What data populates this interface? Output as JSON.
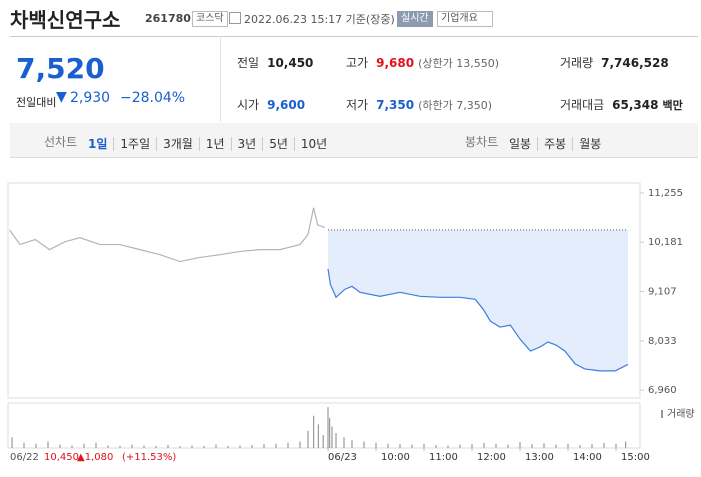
{
  "header": {
    "name": "차백신연구소",
    "code": "261780",
    "market": "코스닥",
    "timestamp": "2022.06.23 15:17 기준(장중)",
    "realtime": "실시간",
    "overview": "기업개요"
  },
  "price": {
    "current": "7,520",
    "change_label": "전일대비",
    "change": "2,930",
    "rate": "−28.04%"
  },
  "stats": [
    {
      "label": "전일",
      "value": "10,450"
    },
    {
      "label": "고가",
      "value": "9,680",
      "note": "(상한가 13,550)"
    },
    {
      "label": "거래량",
      "value": "7,746,528"
    },
    {
      "label": "시가",
      "value": "9,600"
    },
    {
      "label": "저가",
      "value": "7,350",
      "note": "(하한가 7,350)"
    },
    {
      "label": "거래대금",
      "value": "65,348",
      "note": "백만"
    }
  ],
  "tabs": {
    "line_label": "선차트",
    "line_items": [
      "1일",
      "1주일",
      "3개월",
      "1년",
      "3년",
      "5년",
      "10년"
    ],
    "candle_label": "봉차트",
    "candle_items": [
      "일봉",
      "주봉",
      "월봉"
    ]
  },
  "chart_data": {
    "type": "line",
    "ylim": [
      6790,
      11470
    ],
    "yticks": [
      {
        "value": 11255,
        "label": "11,255"
      },
      {
        "value": 10181,
        "label": "10,181"
      },
      {
        "value": 9107,
        "label": "9,107"
      },
      {
        "value": 8033,
        "label": "8,033"
      },
      {
        "value": 6960,
        "label": "6,960"
      }
    ],
    "xlim": [
      -400,
      390
    ],
    "xticks": [
      {
        "value": 0,
        "label": "06/23"
      },
      {
        "value": 60,
        "label": "10:00"
      },
      {
        "value": 120,
        "label": "11:00"
      },
      {
        "value": 180,
        "label": "12:00"
      },
      {
        "value": 240,
        "label": "13:00"
      },
      {
        "value": 300,
        "label": "14:00"
      },
      {
        "value": 360,
        "label": "15:00"
      }
    ],
    "reference": 10450,
    "series": [
      {
        "color": "#b4b4b4",
        "x": [
          -398,
          -385,
          -366,
          -348,
          -329,
          -310,
          -285,
          -260,
          -235,
          -210,
          -185,
          -160,
          -135,
          -110,
          -85,
          -60,
          -35,
          -25,
          -18,
          -13,
          -4
        ],
        "values": [
          10450,
          10130,
          10240,
          10020,
          10190,
          10280,
          10130,
          10130,
          10020,
          9910,
          9760,
          9850,
          9910,
          9980,
          10020,
          10020,
          10130,
          10350,
          10930,
          10560,
          10500
        ]
      },
      {
        "color": "#3b7ddd",
        "fill": "#e3edfb",
        "x": [
          0,
          3,
          10,
          21,
          30,
          40,
          65,
          90,
          115,
          140,
          165,
          184,
          194,
          203,
          215,
          228,
          240,
          253,
          265,
          275,
          285,
          296,
          309,
          321,
          340,
          359,
          375
        ],
        "values": [
          9600,
          9263,
          8982,
          9155,
          9220,
          9090,
          9003,
          9090,
          9003,
          8982,
          8982,
          8938,
          8722,
          8462,
          8332,
          8376,
          8073,
          7813,
          7900,
          8008,
          7943,
          7813,
          7532,
          7423,
          7380,
          7380,
          7520
        ]
      }
    ],
    "volume": {
      "name": "거래량",
      "color": "#9a9a9a",
      "vlim": [
        0,
        100
      ],
      "x": [
        -395,
        -380,
        -365,
        -350,
        -335,
        -320,
        -305,
        -290,
        -275,
        -260,
        -245,
        -230,
        -215,
        -200,
        -185,
        -170,
        -155,
        -140,
        -125,
        -110,
        -95,
        -80,
        -65,
        -50,
        -35,
        -25,
        -18,
        -12,
        -6,
        0,
        2,
        5,
        10,
        20,
        30,
        45,
        60,
        75,
        90,
        105,
        120,
        135,
        150,
        165,
        180,
        195,
        210,
        225,
        240,
        255,
        270,
        285,
        300,
        315,
        330,
        345,
        360,
        372
      ],
      "values": [
        25,
        12,
        10,
        15,
        8,
        6,
        10,
        12,
        6,
        5,
        8,
        6,
        5,
        7,
        4,
        6,
        5,
        8,
        5,
        6,
        7,
        9,
        10,
        12,
        15,
        40,
        75,
        55,
        30,
        95,
        70,
        50,
        35,
        25,
        18,
        15,
        12,
        10,
        9,
        8,
        10,
        7,
        6,
        8,
        9,
        12,
        10,
        8,
        14,
        9,
        11,
        8,
        10,
        7,
        9,
        12,
        10,
        15
      ]
    },
    "prev_day": {
      "date": "06/22",
      "close": "10,450",
      "change": "▲1,080",
      "rate": "(+11.53%)"
    }
  }
}
